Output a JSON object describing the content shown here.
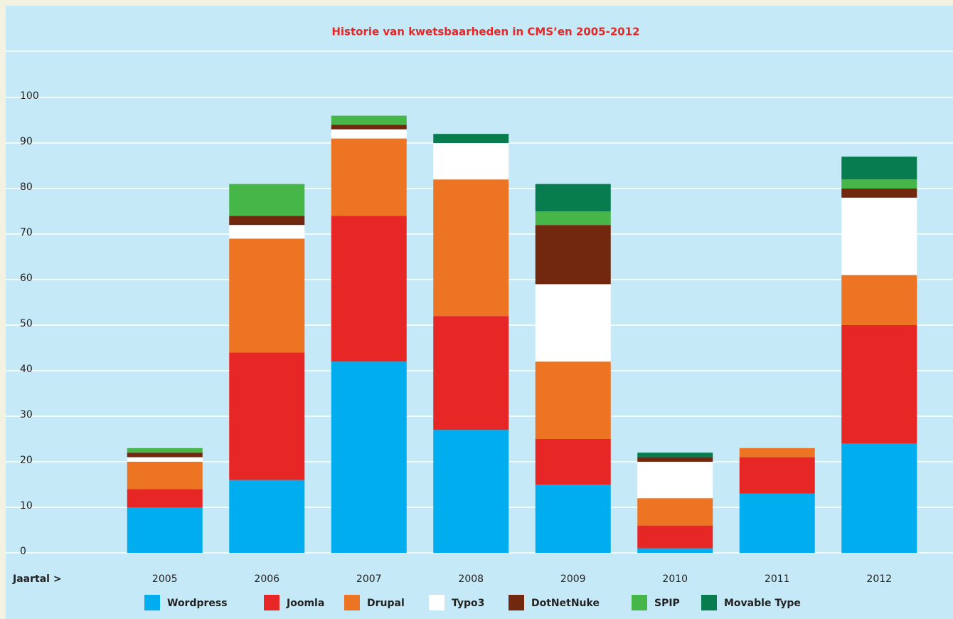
{
  "chart_data": {
    "type": "stacked_bar",
    "title": "Historie van kwetsbaarheden in CMS’en 2005-2012",
    "x_label": "Jaartal >",
    "categories": [
      "2005",
      "2006",
      "2007",
      "2008",
      "2009",
      "2010",
      "2011",
      "2012"
    ],
    "series": [
      {
        "name": "Wordpress",
        "color": "#00adee",
        "values": [
          10,
          16,
          42,
          27,
          15,
          1,
          13,
          24
        ]
      },
      {
        "name": "Joomla",
        "color": "#e72725",
        "values": [
          4,
          28,
          32,
          25,
          10,
          5,
          8,
          26
        ]
      },
      {
        "name": "Drupal",
        "color": "#ec7423",
        "values": [
          6,
          25,
          17,
          30,
          17,
          6,
          2,
          11
        ]
      },
      {
        "name": "Typo3",
        "color": "#ffffff",
        "values": [
          1,
          3,
          2,
          8,
          17,
          8,
          0,
          17
        ]
      },
      {
        "name": "DotNetNuke",
        "color": "#72270f",
        "values": [
          1,
          2,
          1,
          0,
          13,
          1,
          0,
          2
        ]
      },
      {
        "name": "SPIP",
        "color": "#46b649",
        "values": [
          1,
          7,
          2,
          0,
          3,
          0,
          0,
          2
        ]
      },
      {
        "name": "Movable Type",
        "color": "#067c4f",
        "values": [
          0,
          0,
          0,
          2,
          6,
          1,
          0,
          5
        ]
      }
    ],
    "ylim": [
      0,
      100
    ],
    "yticks": [
      0,
      10,
      20,
      30,
      40,
      50,
      60,
      70,
      80,
      90,
      100
    ],
    "grid": true
  }
}
